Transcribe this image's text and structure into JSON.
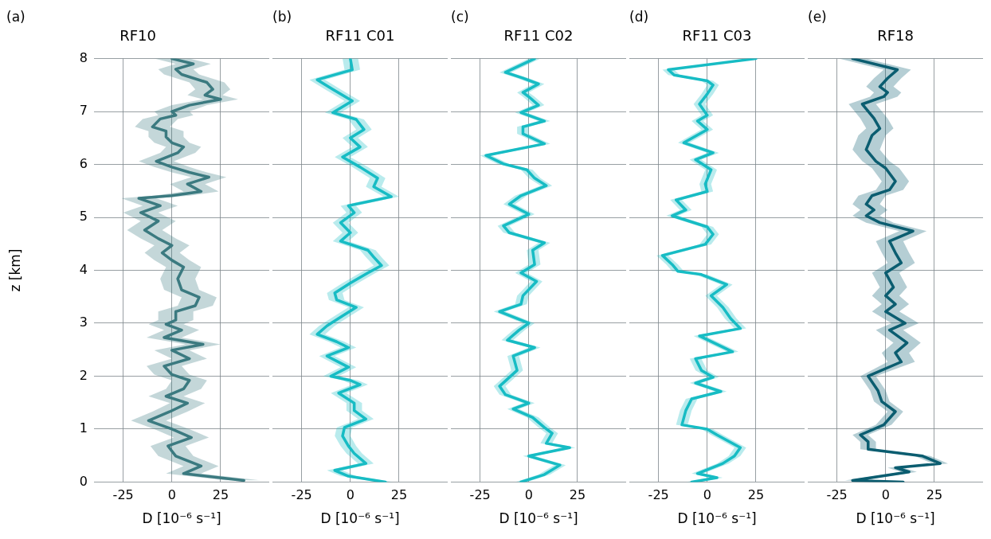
{
  "chart_data": [
    {
      "type": "line",
      "title": "RF10",
      "annotations": [
        "(a)"
      ],
      "orientation": "horizontal",
      "ylabel": "z [km]",
      "xlabel": "D [10⁻⁶ s⁻¹]",
      "xlim": [
        -40,
        50
      ],
      "xticks": [
        -25,
        0,
        25
      ],
      "ylim": [
        0,
        8
      ],
      "yticks": [
        0,
        1,
        2,
        3,
        4,
        5,
        6,
        7,
        8
      ],
      "grid": true,
      "series": [
        {
          "color": "#3b7a80",
          "x": [
            8,
            7.9,
            7.8,
            7.7,
            7.55,
            7.42,
            7.31,
            7.23,
            7.12,
            7,
            6.93,
            6.86,
            6.71,
            6.63,
            6.52,
            6.41,
            6.33,
            6.22,
            6.06,
            5.95,
            5.85,
            5.76,
            5.63,
            5.49,
            5.41,
            5.36,
            5.22,
            5.09,
            4.93,
            4.76,
            4.6,
            4.47,
            4.33,
            4.19,
            4.06,
            3.84,
            3.63,
            3.49,
            3.33,
            3.22,
            3.06,
            2.98,
            2.87,
            2.73,
            2.6,
            2.49,
            2.33,
            2.19,
            2.03,
            1.92,
            1.76,
            1.62,
            1.49,
            1.33,
            1.16,
            1,
            0.84,
            0.68,
            0.49,
            0.3,
            0.16,
            0.03
          ],
          "values": [
            0,
            11,
            2,
            5,
            18,
            21,
            17,
            25,
            9,
            0,
            2,
            -6,
            -10,
            -3,
            -3,
            0,
            6,
            3,
            -8,
            0,
            9,
            19,
            8,
            15,
            0,
            -17,
            -6,
            -16,
            -7,
            -14,
            -7,
            0,
            -5,
            0,
            6,
            3,
            5,
            14,
            12,
            2,
            2,
            -3,
            5,
            -4,
            16,
            0,
            9,
            -4,
            0,
            9,
            6,
            -3,
            8,
            -1,
            -12,
            0,
            10,
            -2,
            2,
            15,
            6,
            37
          ],
          "lower": [
            -9,
            2,
            -7,
            -4,
            9,
            12,
            8,
            16,
            0,
            -9,
            -7,
            -15,
            -19,
            -12,
            -12,
            -9,
            -3,
            -6,
            -17,
            -9,
            0,
            10,
            -1,
            6,
            -9,
            -26,
            -15,
            -25,
            -16,
            -23,
            -16,
            -9,
            -14,
            -9,
            -3,
            -6,
            -4,
            5,
            3,
            -7,
            -7,
            -12,
            -4,
            -13,
            7,
            -9,
            0,
            -13,
            -9,
            0,
            -3,
            -12,
            -1,
            -10,
            -21,
            -9,
            1,
            -11,
            -7,
            6,
            -3,
            28
          ],
          "upper": [
            9,
            20,
            11,
            14,
            27,
            30,
            26,
            34,
            18,
            9,
            11,
            3,
            -1,
            6,
            6,
            9,
            15,
            12,
            1,
            9,
            18,
            28,
            17,
            24,
            9,
            -8,
            3,
            -7,
            2,
            -5,
            2,
            9,
            4,
            9,
            15,
            12,
            14,
            23,
            21,
            11,
            11,
            6,
            14,
            5,
            25,
            9,
            18,
            5,
            9,
            18,
            15,
            6,
            17,
            8,
            -3,
            9,
            19,
            7,
            11,
            24,
            15,
            46
          ]
        }
      ]
    },
    {
      "type": "line",
      "title": "RF11 C01",
      "annotations": [
        "(b)"
      ],
      "orientation": "horizontal",
      "xlabel": "D [10⁻⁶ s⁻¹]",
      "xlim": [
        -40,
        50
      ],
      "xticks": [
        -25,
        0,
        25
      ],
      "ylim": [
        0,
        8
      ],
      "yticks": [
        0,
        1,
        2,
        3,
        4,
        5,
        6,
        7,
        8
      ],
      "grid": true,
      "tick_labels": "x",
      "series": [
        {
          "color": "#17bcc4",
          "x": [
            8,
            7.79,
            7.6,
            7.42,
            7.2,
            6.98,
            6.85,
            6.66,
            6.5,
            6.33,
            6.14,
            5.95,
            5.74,
            5.58,
            5.39,
            5.22,
            5.09,
            4.9,
            4.71,
            4.55,
            4.38,
            4.25,
            4.09,
            3.95,
            3.76,
            3.57,
            3.44,
            3.3,
            3.14,
            2.95,
            2.79,
            2.65,
            2.54,
            2.38,
            2.17,
            2,
            1.92,
            1.84,
            1.68,
            1.49,
            1.35,
            1.19,
            1.03,
            0.87,
            0.68,
            0.54,
            0.35,
            0.22,
            0.11,
            0
          ],
          "values": [
            0,
            1,
            -17,
            -9,
            1,
            -9,
            3,
            7,
            0,
            5,
            -4,
            5,
            14,
            12,
            21,
            -1,
            2,
            -5,
            0,
            -5,
            9,
            12,
            16,
            9,
            0,
            -8,
            -7,
            3,
            -4,
            -12,
            -17,
            -7,
            -1,
            -12,
            -1,
            -10,
            0,
            5,
            -6,
            2,
            2,
            8,
            -3,
            -4,
            -1,
            2,
            8,
            -8,
            -1,
            18
          ],
          "lower": [
            -4,
            -3,
            -21,
            -13,
            -3,
            -13,
            -1,
            3,
            -4,
            1,
            -8,
            1,
            10,
            8,
            17,
            -5,
            -2,
            -9,
            -4,
            -9,
            5,
            8,
            12,
            5,
            -4,
            -12,
            -11,
            -1,
            -8,
            -16,
            -21,
            -11,
            -5,
            -16,
            -5,
            -14,
            -4,
            1,
            -10,
            -2,
            -2,
            4,
            -7,
            -8,
            -5,
            -2,
            4,
            -12,
            -5,
            14
          ],
          "upper": [
            4,
            5,
            -13,
            -5,
            5,
            -5,
            7,
            11,
            4,
            9,
            0,
            9,
            18,
            16,
            25,
            3,
            6,
            -1,
            4,
            -1,
            13,
            16,
            20,
            13,
            4,
            -4,
            -3,
            7,
            0,
            -8,
            -13,
            -3,
            3,
            -8,
            3,
            -6,
            4,
            9,
            -2,
            6,
            6,
            12,
            1,
            0,
            3,
            6,
            12,
            -4,
            3,
            22
          ]
        }
      ]
    },
    {
      "type": "line",
      "title": "RF11 C02",
      "annotations": [
        "(c)"
      ],
      "orientation": "horizontal",
      "xlabel": "D [10⁻⁶ s⁻¹]",
      "xlim": [
        -40,
        50
      ],
      "xticks": [
        -25,
        0,
        25
      ],
      "ylim": [
        0,
        8
      ],
      "yticks": [
        0,
        1,
        2,
        3,
        4,
        5,
        6,
        7,
        8
      ],
      "grid": true,
      "tick_labels": "x",
      "series": [
        {
          "color": "#17bcc4",
          "x": [
            8,
            7.74,
            7.63,
            7.52,
            7.36,
            7.28,
            7.12,
            6.98,
            6.82,
            6.71,
            6.58,
            6.39,
            6.17,
            6.01,
            5.9,
            5.74,
            5.6,
            5.41,
            5.25,
            5.06,
            4.84,
            4.71,
            4.52,
            4.38,
            4.11,
            3.95,
            3.79,
            3.52,
            3.36,
            3.22,
            3,
            2.87,
            2.68,
            2.54,
            2.38,
            2.11,
            1.81,
            1.65,
            1.49,
            1.38,
            1.22,
            1.03,
            0.92,
            0.73,
            0.65,
            0.49,
            0.32,
            0.14,
            0
          ],
          "values": [
            3,
            -12,
            -3,
            5,
            -3,
            0,
            5,
            -4,
            8,
            -3,
            -3,
            8,
            -22,
            -13,
            -1,
            3,
            9,
            -4,
            -10,
            0,
            -13,
            -10,
            8,
            2,
            3,
            -4,
            4,
            -3,
            -4,
            -15,
            0,
            -5,
            -11,
            3,
            -8,
            -6,
            -15,
            -12,
            0,
            -8,
            2,
            8,
            12,
            9,
            21,
            0,
            16,
            8,
            -4
          ],
          "lower": [
            0,
            -15,
            -6,
            2,
            -6,
            -3,
            2,
            -7,
            5,
            -6,
            -6,
            5,
            -25,
            -16,
            -4,
            0,
            6,
            -7,
            -13,
            -3,
            -16,
            -13,
            5,
            -1,
            0,
            -7,
            1,
            -6,
            -7,
            -18,
            -3,
            -8,
            -14,
            0,
            -11,
            -9,
            -18,
            -15,
            -3,
            -11,
            -1,
            5,
            9,
            6,
            18,
            -3,
            13,
            5,
            -7
          ],
          "upper": [
            6,
            -9,
            0,
            8,
            0,
            3,
            8,
            -1,
            11,
            0,
            0,
            11,
            -19,
            -10,
            2,
            6,
            12,
            -1,
            -7,
            3,
            -10,
            -7,
            11,
            5,
            6,
            -1,
            7,
            0,
            -1,
            -12,
            3,
            -2,
            -8,
            6,
            -5,
            -3,
            -12,
            -9,
            3,
            -5,
            5,
            11,
            15,
            12,
            24,
            3,
            19,
            11,
            -1
          ]
        }
      ]
    },
    {
      "type": "line",
      "title": "RF11 C03",
      "annotations": [
        "(d)"
      ],
      "orientation": "horizontal",
      "xlabel": "D [10⁻⁶ s⁻¹]",
      "xlim": [
        -40,
        50
      ],
      "xticks": [
        -25,
        0,
        25
      ],
      "ylim": [
        0,
        8
      ],
      "yticks": [
        0,
        1,
        2,
        3,
        4,
        5,
        6,
        7,
        8
      ],
      "grid": true,
      "tick_labels": "x",
      "series": [
        {
          "color": "#17bcc4",
          "x": [
            8,
            7.79,
            7.69,
            7.58,
            7.5,
            7.33,
            7.14,
            6.93,
            6.82,
            6.66,
            6.41,
            6.22,
            6.09,
            5.9,
            5.63,
            5.49,
            5.33,
            5.14,
            5.03,
            4.82,
            4.68,
            4.49,
            4.28,
            4.11,
            3.98,
            3.92,
            3.73,
            3.52,
            3.3,
            3.09,
            2.9,
            2.76,
            2.46,
            2.33,
            2.11,
            1.98,
            1.87,
            1.71,
            1.57,
            1.35,
            1.08,
            1,
            0.89,
            0.65,
            0.49,
            0.35,
            0.16,
            0.08,
            0
          ],
          "values": [
            25,
            -20,
            -17,
            0,
            3,
            0,
            -4,
            0,
            -5,
            0,
            -12,
            3,
            -6,
            2,
            -1,
            0,
            -16,
            -11,
            -18,
            0,
            3,
            -1,
            -23,
            -18,
            -15,
            -3,
            10,
            2,
            8,
            12,
            17,
            -4,
            13,
            -6,
            -3,
            3,
            -6,
            7,
            -8,
            -11,
            -13,
            0,
            5,
            17,
            14,
            8,
            -5,
            5,
            -8
          ],
          "lower": [
            22,
            -23,
            -20,
            -3,
            0,
            -3,
            -7,
            -3,
            -8,
            -3,
            -15,
            0,
            -9,
            -1,
            -4,
            -3,
            -19,
            -14,
            -21,
            -3,
            0,
            -4,
            -26,
            -21,
            -18,
            -6,
            7,
            -1,
            5,
            9,
            14,
            -7,
            10,
            -9,
            -6,
            0,
            -9,
            4,
            -11,
            -14,
            -16,
            -3,
            2,
            14,
            11,
            5,
            -8,
            2,
            -11
          ],
          "upper": [
            28,
            -17,
            -14,
            3,
            6,
            3,
            -1,
            3,
            -2,
            3,
            -9,
            6,
            -3,
            5,
            2,
            3,
            -13,
            -8,
            -15,
            3,
            6,
            2,
            -20,
            -15,
            -12,
            0,
            13,
            5,
            11,
            15,
            20,
            -1,
            16,
            -3,
            0,
            6,
            -3,
            10,
            -5,
            -8,
            -10,
            3,
            8,
            20,
            17,
            11,
            -2,
            8,
            -5
          ]
        }
      ]
    },
    {
      "type": "line",
      "title": "RF18",
      "annotations": [
        "(e)"
      ],
      "orientation": "horizontal",
      "xlabel": "D [10⁻⁶ s⁻¹]",
      "xlim": [
        -40,
        50
      ],
      "xticks": [
        -25,
        0,
        25
      ],
      "ylim": [
        0,
        8
      ],
      "yticks": [
        0,
        1,
        2,
        3,
        4,
        5,
        6,
        7,
        8
      ],
      "grid": true,
      "tick_labels": "x",
      "series": [
        {
          "color": "#0b5d70",
          "x": [
            8,
            7.79,
            7.63,
            7.47,
            7.36,
            7.28,
            7.14,
            6.87,
            6.68,
            6.55,
            6.28,
            6.06,
            5.93,
            5.68,
            5.52,
            5.41,
            5.25,
            5.14,
            5.03,
            4.9,
            4.74,
            4.55,
            4.33,
            4.14,
            3.95,
            3.68,
            3.52,
            3.36,
            3.22,
            3,
            2.87,
            2.63,
            2.44,
            2.27,
            2,
            1.73,
            1.52,
            1.33,
            1.08,
            0.89,
            0.76,
            0.62,
            0.49,
            0.35,
            0.27,
            0.19,
            0.03,
            0
          ],
          "values": [
            -17,
            6,
            1,
            -3,
            1,
            -1,
            -12,
            -6,
            -3,
            -7,
            -10,
            -5,
            0,
            5,
            2,
            -7,
            -10,
            -6,
            -10,
            -3,
            14,
            2,
            5,
            8,
            0,
            4,
            0,
            5,
            0,
            10,
            2,
            11,
            5,
            8,
            -9,
            -4,
            -2,
            5,
            -1,
            -13,
            -9,
            -9,
            19,
            28,
            5,
            12,
            -17,
            9
          ],
          "lower": [
            -24,
            -1,
            -6,
            -10,
            -6,
            -8,
            -19,
            -13,
            -10,
            -14,
            -17,
            -12,
            -7,
            -2,
            -5,
            -14,
            -17,
            -13,
            -17,
            -10,
            7,
            -5,
            -2,
            1,
            -7,
            -3,
            -7,
            -2,
            -7,
            3,
            -5,
            4,
            -2,
            1,
            -13,
            -8,
            -6,
            1,
            -5,
            -17,
            -13,
            -13,
            15,
            24,
            1,
            8,
            -21,
            5
          ],
          "upper": [
            -10,
            13,
            8,
            4,
            8,
            6,
            -5,
            1,
            4,
            0,
            -3,
            2,
            7,
            12,
            9,
            0,
            -3,
            1,
            -3,
            4,
            21,
            9,
            12,
            15,
            7,
            11,
            7,
            12,
            7,
            17,
            9,
            18,
            12,
            15,
            -5,
            0,
            2,
            9,
            3,
            -9,
            -5,
            -5,
            23,
            32,
            9,
            16,
            -13,
            13
          ]
        }
      ]
    }
  ]
}
